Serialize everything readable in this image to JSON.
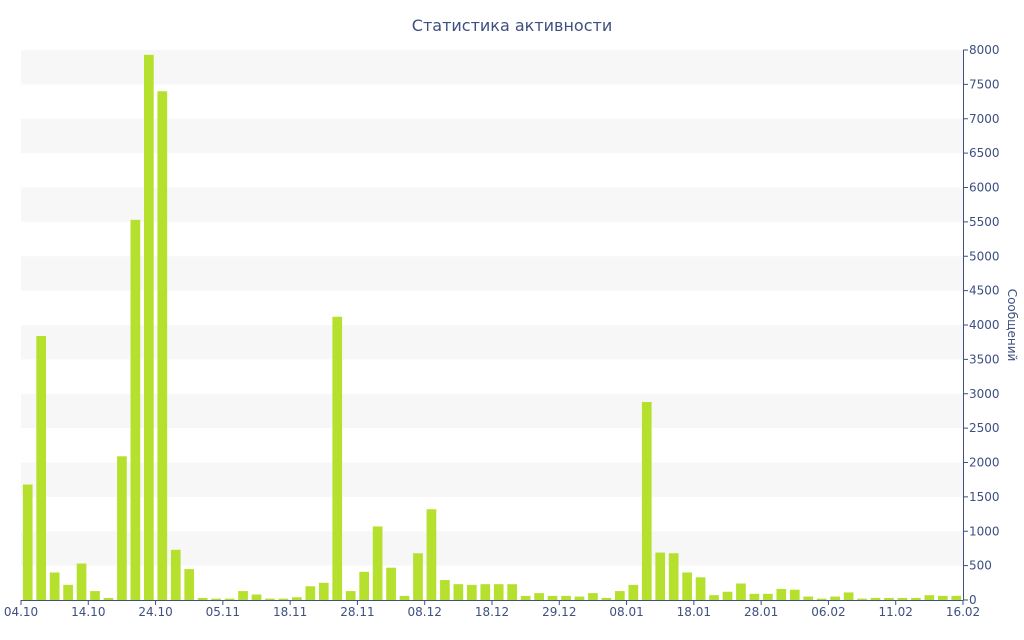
{
  "chart_data": {
    "type": "bar",
    "title": "Статистика активности",
    "xlabel": "",
    "ylabel": "Сообщений",
    "ylim": [
      0,
      8000
    ],
    "yticks": [
      0,
      500,
      1000,
      1500,
      2000,
      2500,
      3000,
      3500,
      4000,
      4500,
      5000,
      5500,
      6000,
      6500,
      7000,
      7500,
      8000
    ],
    "grid": "alternating horizontal bands",
    "y_axis_position": "right",
    "bar_color": "#b5e02e",
    "axis_color": "#3e4f80",
    "band_color": "#f7f7f7",
    "x_tick_labels": [
      {
        "label": "04.10",
        "index": 0
      },
      {
        "label": "14.10",
        "index": 5
      },
      {
        "label": "24.10",
        "index": 10
      },
      {
        "label": "05.11",
        "index": 15
      },
      {
        "label": "18.11",
        "index": 20
      },
      {
        "label": "28.11",
        "index": 25
      },
      {
        "label": "08.12",
        "index": 30
      },
      {
        "label": "18.12",
        "index": 35
      },
      {
        "label": "29.12",
        "index": 40
      },
      {
        "label": "08.01",
        "index": 45
      },
      {
        "label": "18.01",
        "index": 50
      },
      {
        "label": "28.01",
        "index": 55
      },
      {
        "label": "06.02",
        "index": 60
      },
      {
        "label": "11.02",
        "index": 65
      },
      {
        "label": "16.02",
        "index": 70
      }
    ],
    "values": [
      1680,
      3840,
      400,
      220,
      530,
      130,
      30,
      2090,
      5530,
      7930,
      7400,
      730,
      450,
      30,
      20,
      20,
      130,
      80,
      20,
      20,
      40,
      200,
      250,
      4120,
      130,
      410,
      1070,
      470,
      60,
      680,
      1320,
      290,
      230,
      220,
      230,
      230,
      230,
      60,
      100,
      60,
      60,
      50,
      100,
      30,
      130,
      220,
      2880,
      690,
      680,
      400,
      330,
      70,
      120,
      240,
      90,
      90,
      160,
      150,
      50,
      20,
      50,
      110,
      20,
      30,
      30,
      30,
      30,
      70,
      60,
      60
    ]
  }
}
